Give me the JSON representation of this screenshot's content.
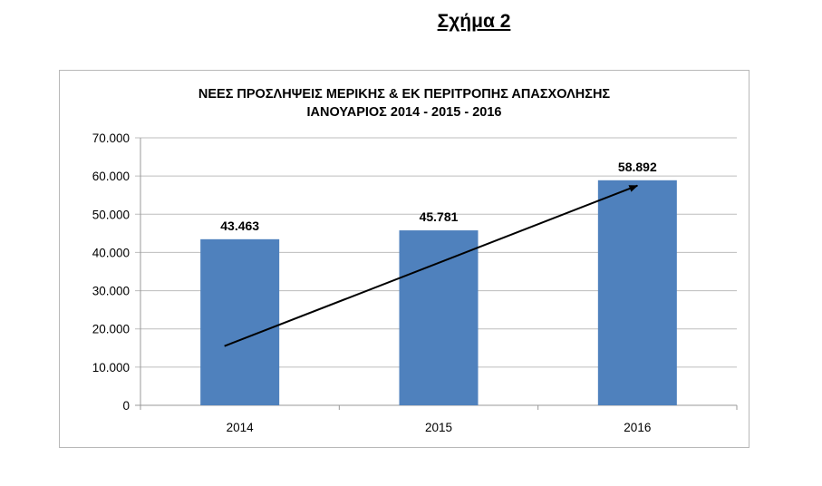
{
  "heading": "Σχήμα 2",
  "chart_data": {
    "type": "bar",
    "title": [
      "ΝΕΕΣ ΠΡΟΣΛΗΨΕΙΣ ΜΕΡΙΚΗΣ & ΕΚ ΠΕΡΙΤΡΟΠΗΣ ΑΠΑΣΧΟΛΗΣΗΣ",
      "ΙΑΝΟΥΑΡΙΟΣ 2014  - 2015   - 2016"
    ],
    "categories": [
      "2014",
      "2015",
      "2016"
    ],
    "values": [
      43463,
      45781,
      58892
    ],
    "data_labels": [
      "43.463",
      "45.781",
      "58.892"
    ],
    "ylim": [
      0,
      70000
    ],
    "yticks": [
      0,
      10000,
      20000,
      30000,
      40000,
      50000,
      60000,
      70000
    ],
    "ytick_labels": [
      "0",
      "10.000",
      "20.000",
      "30.000",
      "40.000",
      "50.000",
      "60.000",
      "70.000"
    ],
    "grid": true,
    "bar_color": "#4f81bd",
    "trend_arrow": {
      "from": {
        "category": "2014",
        "value": 15500
      },
      "to": {
        "category": "2016",
        "value": 57500
      },
      "color": "#000000"
    }
  }
}
